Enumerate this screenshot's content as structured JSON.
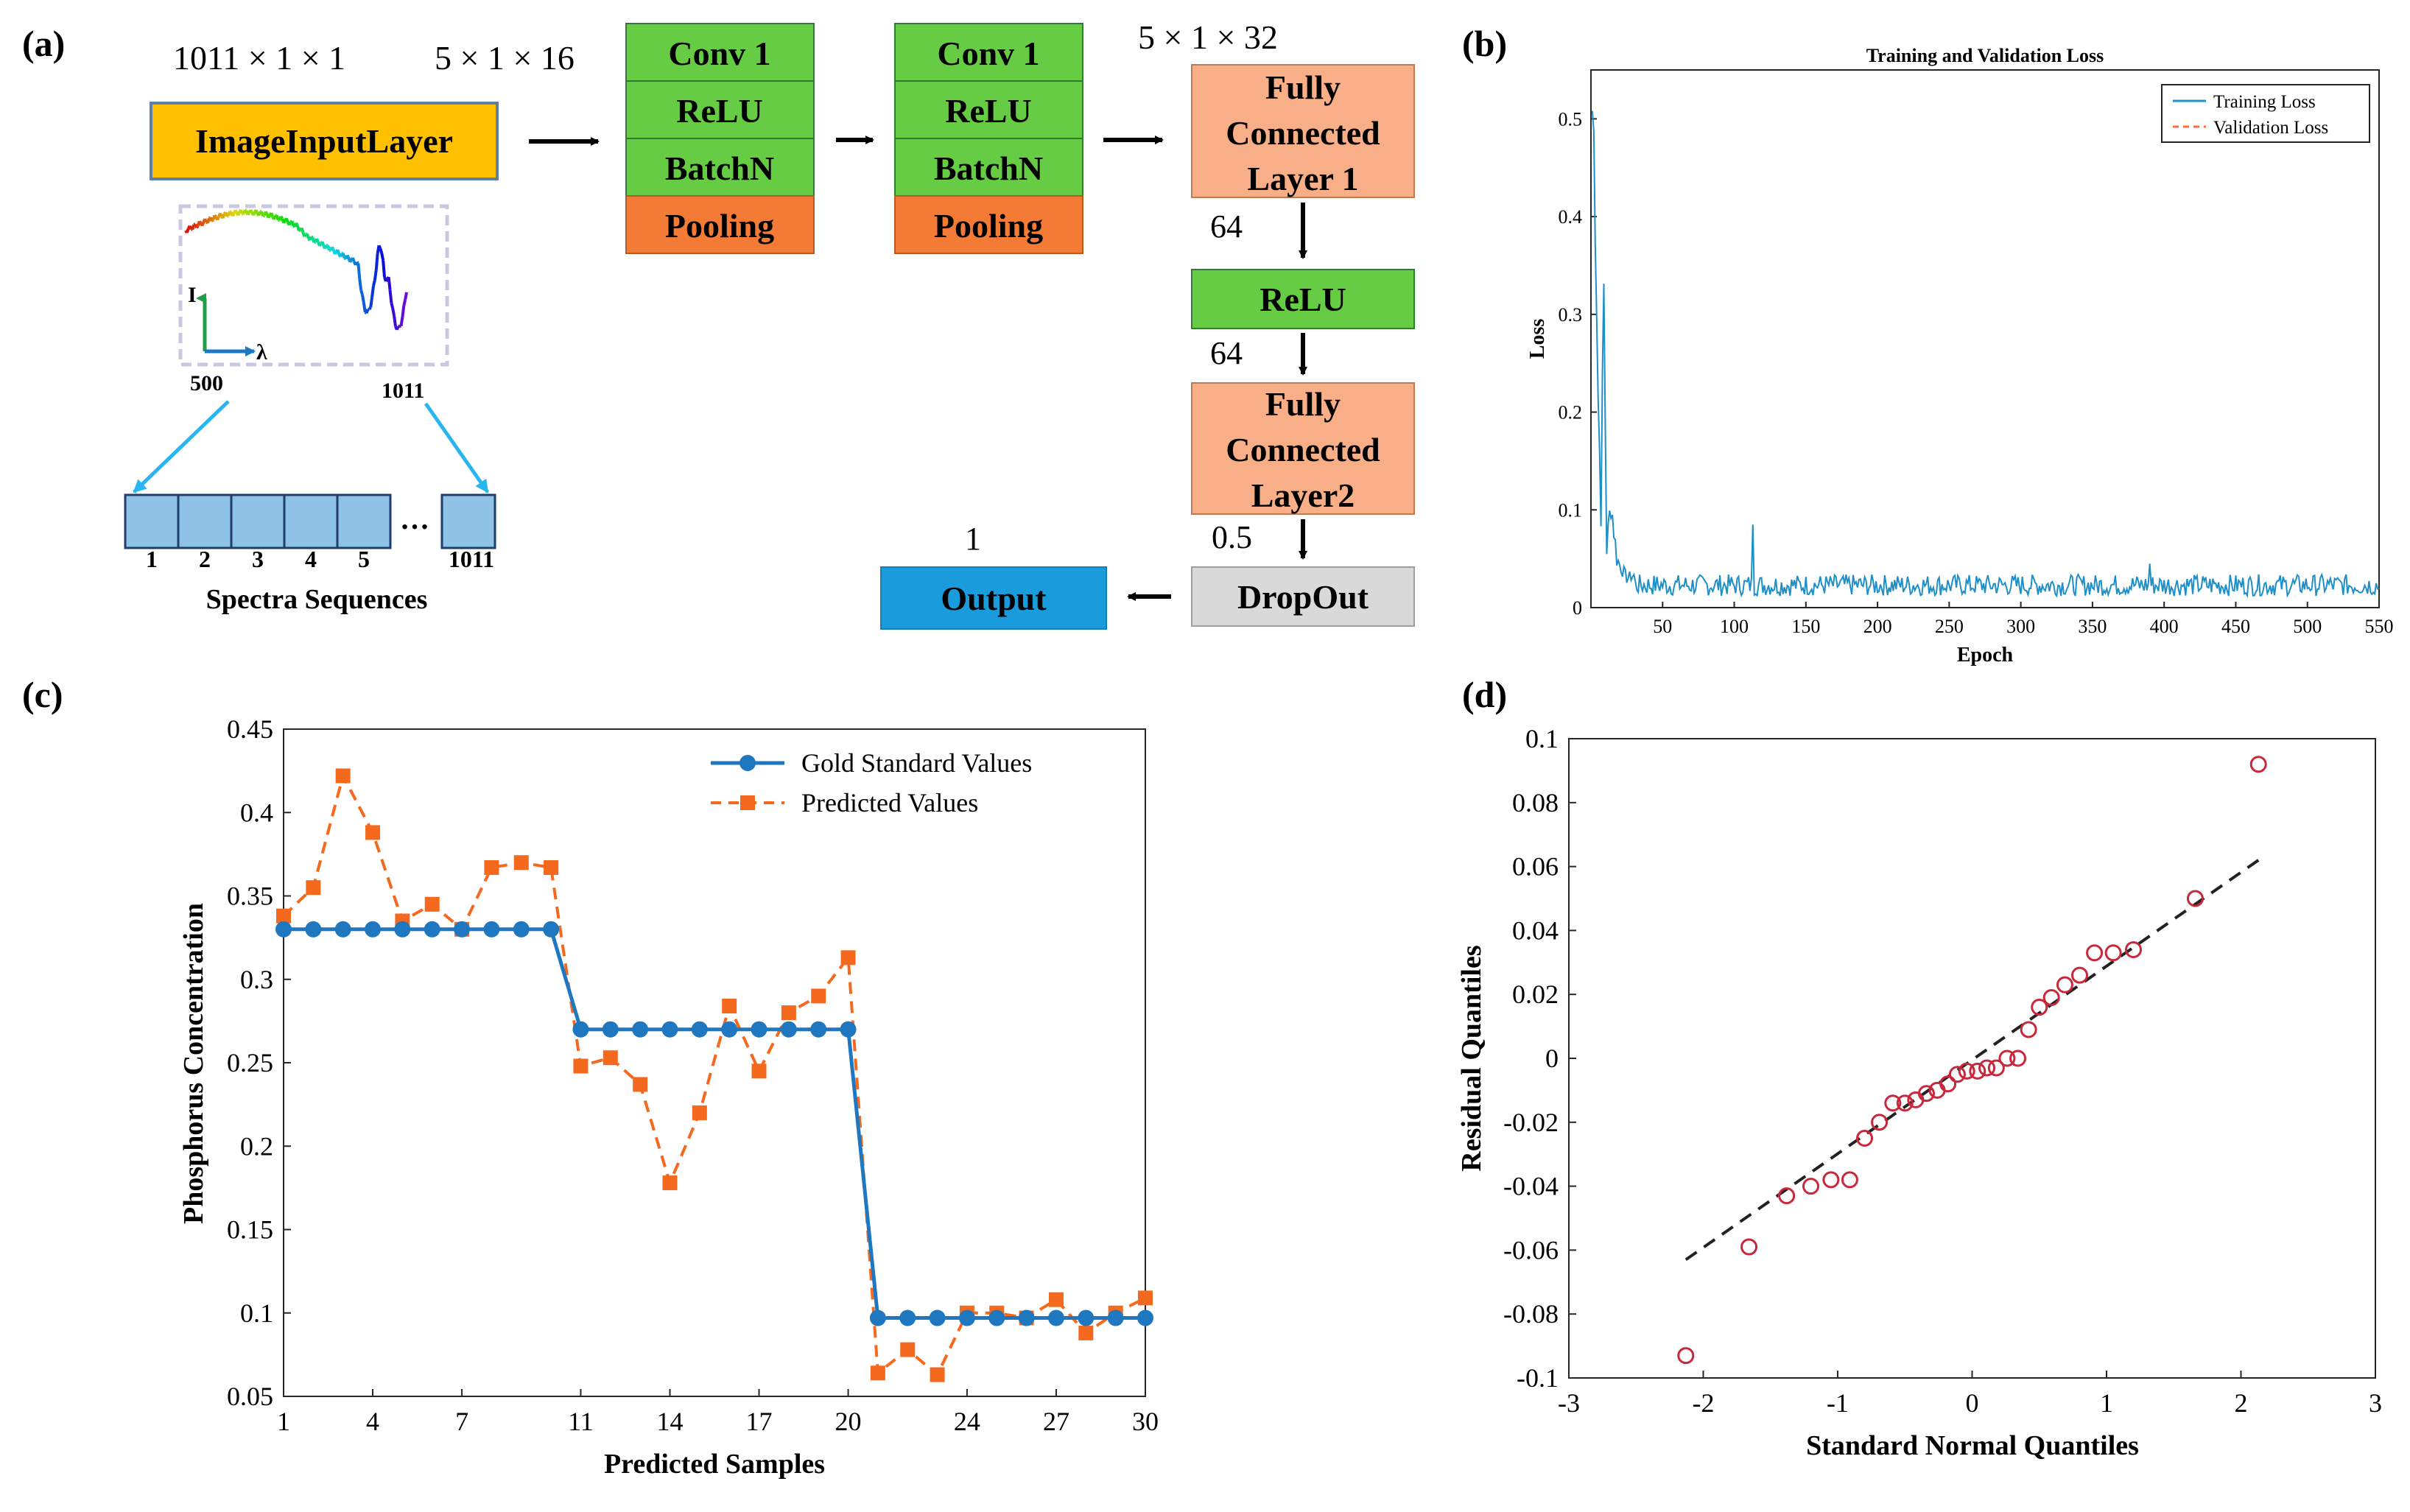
{
  "panels": {
    "a": "(a)",
    "b": "(b)",
    "c": "(c)",
    "d": "(d)"
  },
  "architecture": {
    "input_dim": "1011 × 1 × 1",
    "conv1_dim": "5 × 1 × 16",
    "conv2_dim": "5 × 1 × 32",
    "input_layer": "ImageInputLayer",
    "conv_block_1": [
      "Conv 1",
      "ReLU",
      "BatchN",
      "Pooling"
    ],
    "conv_block_2": [
      "Conv 1",
      "ReLU",
      "BatchN",
      "Pooling"
    ],
    "fc1": [
      "Fully",
      "Connected",
      "Layer 1"
    ],
    "fc1_out": "64",
    "relu": "ReLU",
    "relu_out": "64",
    "fc2": [
      "Fully",
      "Connected",
      "Layer2"
    ],
    "fc2_out": "0.5",
    "dropout": "DropOut",
    "output_dim": "1",
    "output": "Output",
    "spectrum_axis_i": "I",
    "spectrum_axis_lambda": "λ",
    "spectrum_start": "500",
    "spectrum_end": "1011",
    "sequence_cells": [
      "1",
      "2",
      "3",
      "4",
      "5"
    ],
    "sequence_ellipsis": "…",
    "sequence_last": "1011",
    "sequence_caption": "Spectra Sequences",
    "colors": {
      "input": "#FFC000",
      "green": "#66CC44",
      "orange": "#F47B36",
      "salmon": "#F8AF88",
      "output": "#1A9BDB",
      "dropout": "#D9D9D9"
    }
  },
  "chart_data": [
    {
      "panel": "b",
      "type": "line",
      "title": "Training and Validation Loss",
      "xlabel": "Epoch",
      "ylabel": "Loss",
      "xlim": [
        0,
        550
      ],
      "ylim": [
        0,
        0.55
      ],
      "xticks": [
        50,
        100,
        150,
        200,
        250,
        300,
        350,
        400,
        450,
        500,
        550
      ],
      "yticks": [
        0,
        0.1,
        0.2,
        0.3,
        0.4,
        0.5
      ],
      "legend": [
        "Training Loss",
        "Validation Loss"
      ],
      "legend_position": "top-right",
      "colors": {
        "train": "#1F8FC8",
        "val": "#FF6B35"
      },
      "training_loss_key_points": [
        [
          1,
          0.51
        ],
        [
          3,
          0.44
        ],
        [
          5,
          0.22
        ],
        [
          7,
          0.1
        ],
        [
          9,
          0.32
        ],
        [
          11,
          0.06
        ],
        [
          14,
          0.11
        ],
        [
          18,
          0.05
        ],
        [
          25,
          0.03
        ],
        [
          113,
          0.085
        ],
        [
          390,
          0.045
        ],
        [
          550,
          0.02
        ]
      ],
      "training_loss_baseline": 0.012,
      "validation_loss": []
    },
    {
      "panel": "c",
      "type": "line",
      "xlabel": "Predicted Samples",
      "ylabel": "Phosphorus Concentration",
      "xlim": [
        1,
        30
      ],
      "ylim": [
        0.05,
        0.45
      ],
      "xticks": [
        1,
        4,
        7,
        11,
        14,
        17,
        20,
        24,
        27,
        30
      ],
      "yticks": [
        0.05,
        0.1,
        0.15,
        0.2,
        0.25,
        0.3,
        0.35,
        0.4,
        0.45
      ],
      "x": [
        1,
        2,
        3,
        4,
        5,
        6,
        7,
        8,
        9,
        10,
        11,
        12,
        13,
        14,
        15,
        16,
        17,
        18,
        19,
        20,
        21,
        22,
        23,
        24,
        25,
        26,
        27,
        28,
        29,
        30
      ],
      "series": [
        {
          "name": "Gold Standard Values",
          "color": "#1F77C0",
          "style": "solid-circle",
          "values": [
            0.33,
            0.33,
            0.33,
            0.33,
            0.33,
            0.33,
            0.33,
            0.33,
            0.33,
            0.33,
            0.27,
            0.27,
            0.27,
            0.27,
            0.27,
            0.27,
            0.27,
            0.27,
            0.27,
            0.27,
            0.097,
            0.097,
            0.097,
            0.097,
            0.097,
            0.097,
            0.097,
            0.097,
            0.097,
            0.097
          ]
        },
        {
          "name": "Predicted Values",
          "color": "#F5691E",
          "style": "dashed-square",
          "values": [
            0.338,
            0.355,
            0.422,
            0.388,
            0.335,
            0.345,
            0.33,
            0.367,
            0.37,
            0.367,
            0.248,
            0.253,
            0.237,
            0.178,
            0.22,
            0.284,
            0.245,
            0.28,
            0.29,
            0.313,
            0.064,
            0.078,
            0.063,
            0.1,
            0.1,
            0.097,
            0.108,
            0.088,
            0.1,
            0.109
          ]
        }
      ],
      "legend_position": "top-right"
    },
    {
      "panel": "d",
      "type": "scatter",
      "xlabel": "Standard Normal Quantiles",
      "ylabel": "Residual Quantiles",
      "xlim": [
        -3,
        3
      ],
      "ylim": [
        -0.1,
        0.1
      ],
      "xticks": [
        -3,
        -2,
        -1,
        0,
        1,
        2,
        3
      ],
      "yticks": [
        -0.1,
        -0.08,
        -0.06,
        -0.04,
        -0.02,
        0,
        0.02,
        0.04,
        0.06,
        0.08,
        0.1
      ],
      "points": [
        [
          -2.13,
          -0.093
        ],
        [
          -1.66,
          -0.059
        ],
        [
          -1.38,
          -0.043
        ],
        [
          -1.2,
          -0.04
        ],
        [
          -1.05,
          -0.038
        ],
        [
          -0.91,
          -0.038
        ],
        [
          -0.8,
          -0.025
        ],
        [
          -0.69,
          -0.02
        ],
        [
          -0.59,
          -0.014
        ],
        [
          -0.5,
          -0.014
        ],
        [
          -0.42,
          -0.013
        ],
        [
          -0.34,
          -0.011
        ],
        [
          -0.26,
          -0.01
        ],
        [
          -0.18,
          -0.008
        ],
        [
          -0.11,
          -0.005
        ],
        [
          -0.04,
          -0.004
        ],
        [
          0.04,
          -0.004
        ],
        [
          0.11,
          -0.003
        ],
        [
          0.18,
          -0.003
        ],
        [
          0.26,
          0
        ],
        [
          0.34,
          0
        ],
        [
          0.42,
          0.009
        ],
        [
          0.5,
          0.016
        ],
        [
          0.59,
          0.019
        ],
        [
          0.69,
          0.023
        ],
        [
          0.8,
          0.026
        ],
        [
          0.91,
          0.033
        ],
        [
          1.05,
          0.033
        ],
        [
          1.2,
          0.034
        ],
        [
          1.66,
          0.05
        ],
        [
          2.13,
          0.092
        ]
      ],
      "reference_line": [
        [
          -2.13,
          -0.063
        ],
        [
          2.13,
          0.062
        ]
      ],
      "colors": {
        "points": "#C8283C",
        "line": "#222222"
      }
    }
  ]
}
